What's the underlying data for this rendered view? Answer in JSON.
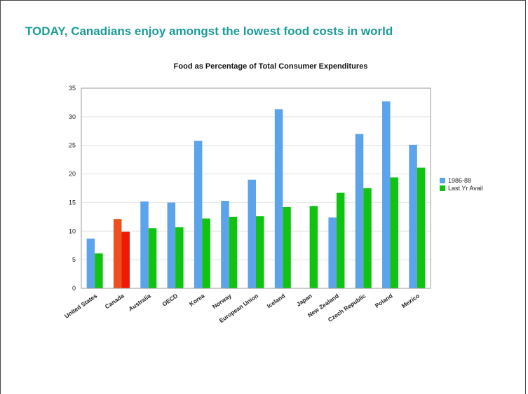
{
  "slide": {
    "title": "TODAY, Canadians enjoy amongst the lowest food costs in world"
  },
  "colors": {
    "title": "#1a9c9a",
    "series_1": "#5ba3ea",
    "series_2": "#10c310",
    "highlight_1": "#ee4f1e",
    "highlight_2": "#ee1a05"
  },
  "chart_data": {
    "type": "bar",
    "title": "Food as Percentage of Total Consumer Expenditures",
    "xlabel": "",
    "ylabel": "",
    "ylim": [
      0,
      35
    ],
    "yticks": [
      0,
      5,
      10,
      15,
      20,
      25,
      30,
      35
    ],
    "grid": true,
    "legend_position": "right",
    "highlight_category": "Canada",
    "categories": [
      "United States",
      "Canada",
      "Australia",
      "OECD",
      "Korea",
      "Norway",
      "European Union",
      "Iceland",
      "Japan",
      "New Zealand",
      "Czech Republic",
      "Poland",
      "Mexico"
    ],
    "series": [
      {
        "name": "1986-88",
        "values": [
          8.7,
          12.1,
          15.2,
          15.0,
          25.8,
          15.3,
          19.0,
          31.3,
          null,
          12.4,
          27.0,
          32.7,
          25.1
        ]
      },
      {
        "name": "Last Yr Avail",
        "values": [
          6.1,
          9.9,
          10.5,
          10.7,
          12.2,
          12.5,
          12.6,
          14.2,
          14.4,
          16.7,
          17.5,
          19.4,
          21.1
        ]
      }
    ]
  }
}
